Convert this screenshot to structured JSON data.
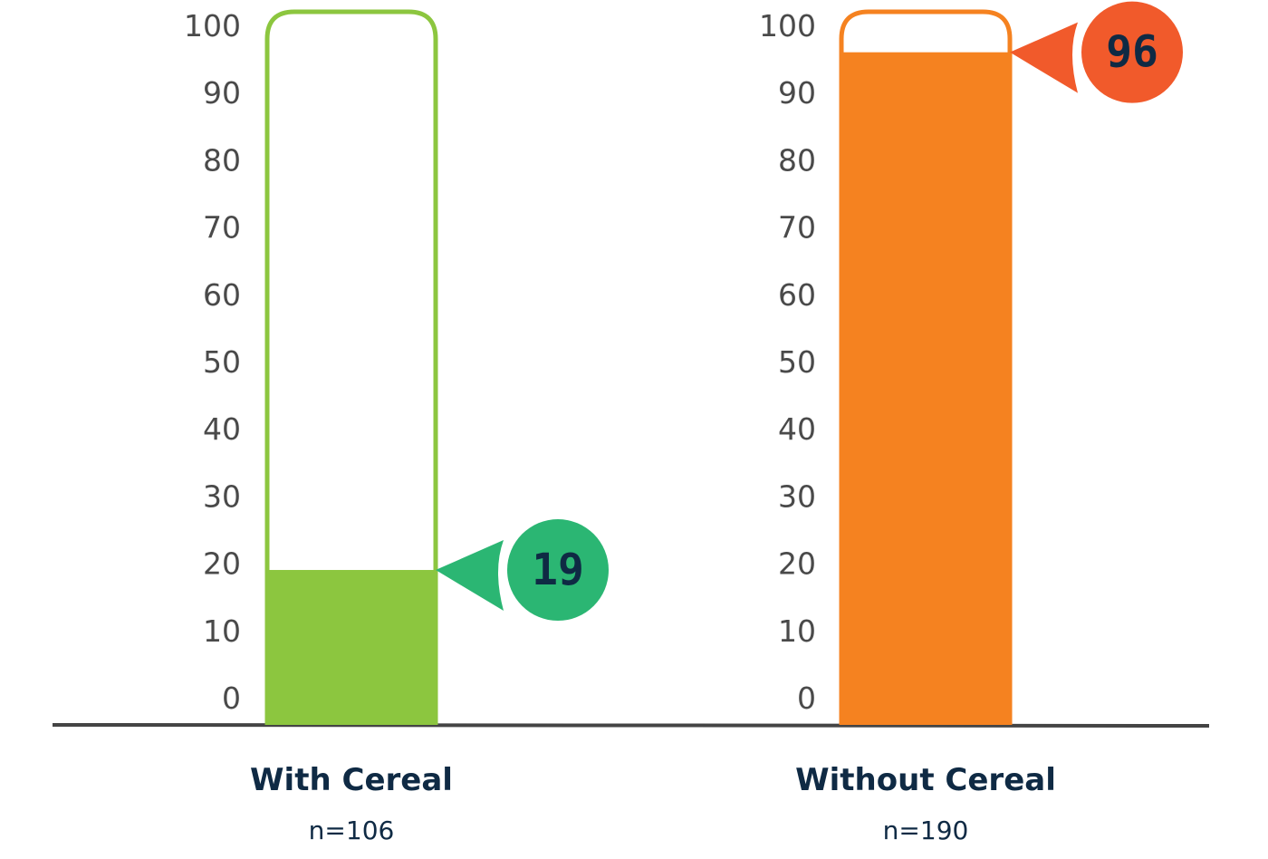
{
  "chart_data": {
    "type": "bar",
    "title": "",
    "xlabel": "",
    "ylabel": "",
    "ylim": [
      0,
      100
    ],
    "yticks": [
      0,
      10,
      20,
      30,
      40,
      50,
      60,
      70,
      80,
      90,
      100
    ],
    "grid": false,
    "categories": [
      "With Cereal",
      "Without Cereal"
    ],
    "sample_sizes": [
      "n=106",
      "n=190"
    ],
    "values": [
      19,
      96
    ],
    "data_labels": [
      "19",
      "96"
    ],
    "colors": {
      "bar_fill": [
        "#8cc63f",
        "#f58220"
      ],
      "bar_outline": [
        "#8cc63f",
        "#f58220"
      ],
      "callout": [
        "#2bb673",
        "#f15a2b"
      ],
      "label_text": "#0f2a44",
      "tick_text": "#4a4a4a",
      "baseline": "#444444"
    }
  }
}
